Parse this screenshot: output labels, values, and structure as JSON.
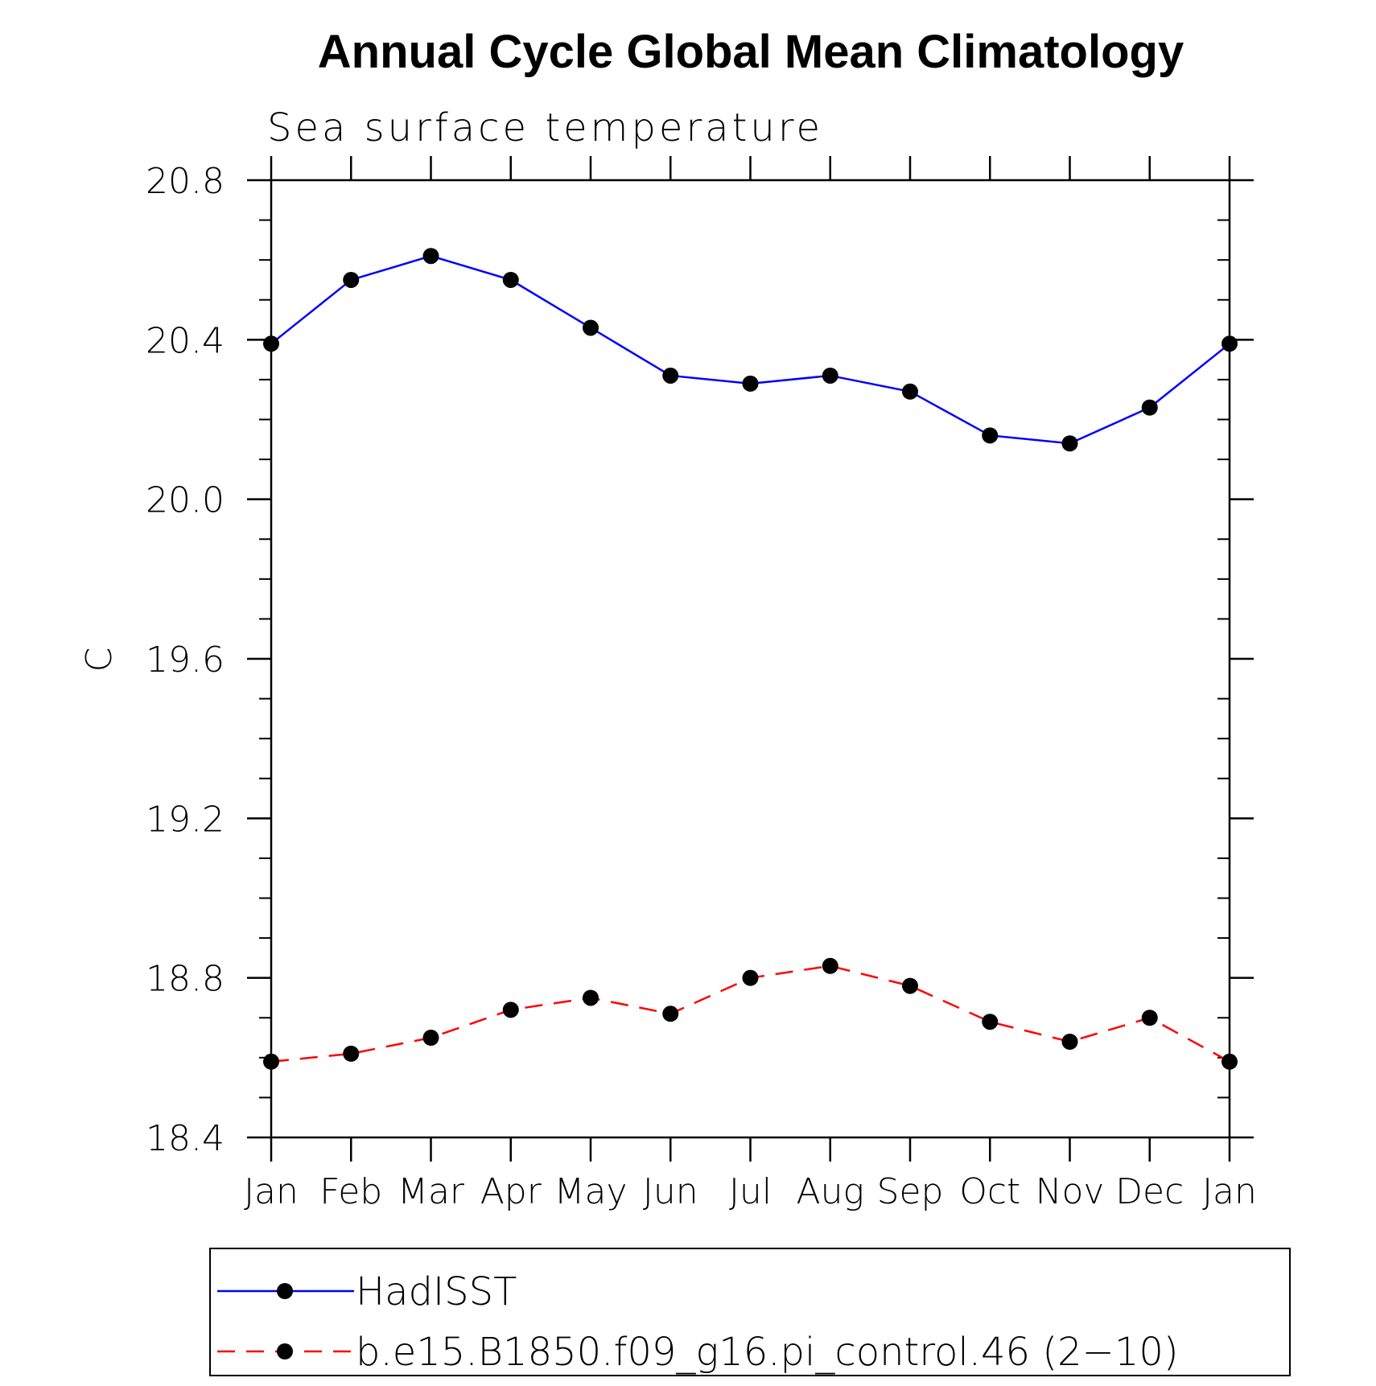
{
  "chart_data": {
    "type": "line",
    "title": "Annual Cycle Global Mean Climatology",
    "subtitle": "Sea surface temperature",
    "xlabel": "",
    "ylabel": "C",
    "categories": [
      "Jan",
      "Feb",
      "Mar",
      "Apr",
      "May",
      "Jun",
      "Jul",
      "Aug",
      "Sep",
      "Oct",
      "Nov",
      "Dec",
      "Jan"
    ],
    "ylim": [
      18.4,
      20.8
    ],
    "yticks": [
      "18.4",
      "18.8",
      "19.2",
      "19.6",
      "20.0",
      "20.4",
      "20.8"
    ],
    "yminor_step": 0.1,
    "grid": false,
    "legend_position": "bottom",
    "series": [
      {
        "name": "HadISST",
        "color": "#0000ff",
        "line_style": "solid",
        "marker": "filled-circle",
        "values": [
          20.39,
          20.55,
          20.61,
          20.55,
          20.43,
          20.31,
          20.29,
          20.31,
          20.27,
          20.16,
          20.14,
          20.23,
          20.39
        ]
      },
      {
        "name": "b.e15.B1850.f09_g16.pi_control.46 (2−10)",
        "color": "#ff0000",
        "line_style": "dashed",
        "marker": "filled-circle",
        "values": [
          18.59,
          18.61,
          18.65,
          18.72,
          18.75,
          18.71,
          18.8,
          18.83,
          18.78,
          18.69,
          18.64,
          18.7,
          18.59
        ]
      }
    ]
  }
}
